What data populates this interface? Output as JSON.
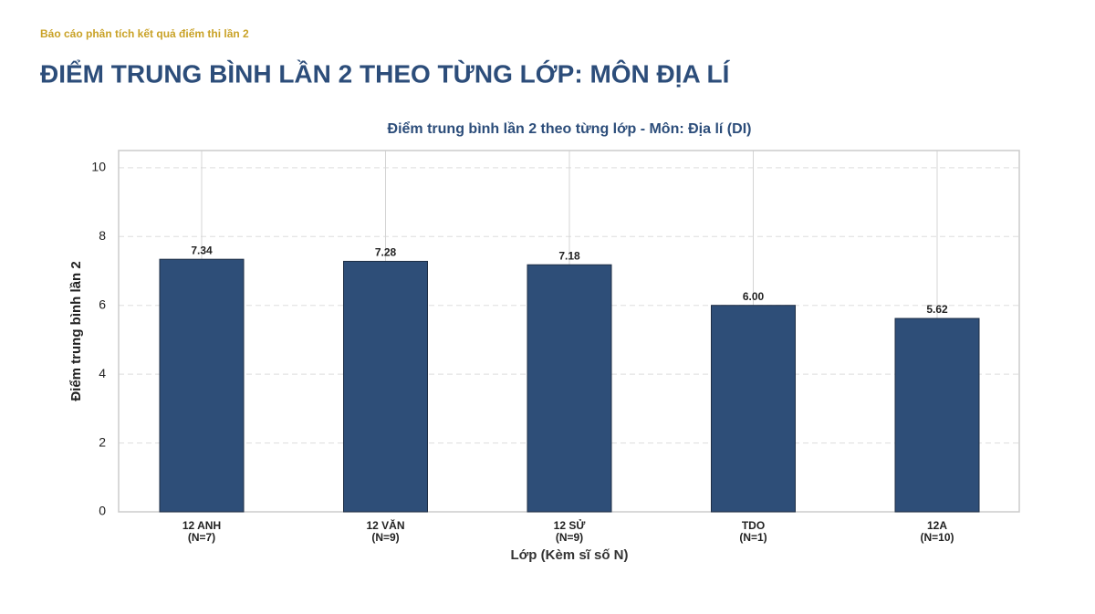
{
  "header": "Báo cáo phân tích kết quả điểm thi lần 2",
  "page_title": "ĐIỂM TRUNG BÌNH LẦN 2 THEO TỪNG LỚP: MÔN ĐỊA LÍ",
  "chart_data": {
    "type": "bar",
    "title": "Điểm trung bình lần 2 theo từng lớp - Môn: Địa lí (DI)",
    "x_label": "Lớp (Kèm sĩ số N)",
    "y_label": "Điểm trung bình lần 2",
    "categories": [
      "12 ANH",
      "12 VĂN",
      "12 SỬ",
      "TDO",
      "12A"
    ],
    "sublabels": [
      "(N=7)",
      "(N=9)",
      "(N=9)",
      "(N=1)",
      "(N=10)"
    ],
    "values": [
      7.34,
      7.28,
      7.18,
      6.0,
      5.62
    ],
    "value_labels": [
      "7.34",
      "7.28",
      "7.18",
      "6.00",
      "5.62"
    ],
    "color": "#2e4e78",
    "ylim": [
      0,
      10.5
    ],
    "yticks": [
      0,
      2,
      4,
      6,
      8,
      10
    ],
    "grid": true
  }
}
